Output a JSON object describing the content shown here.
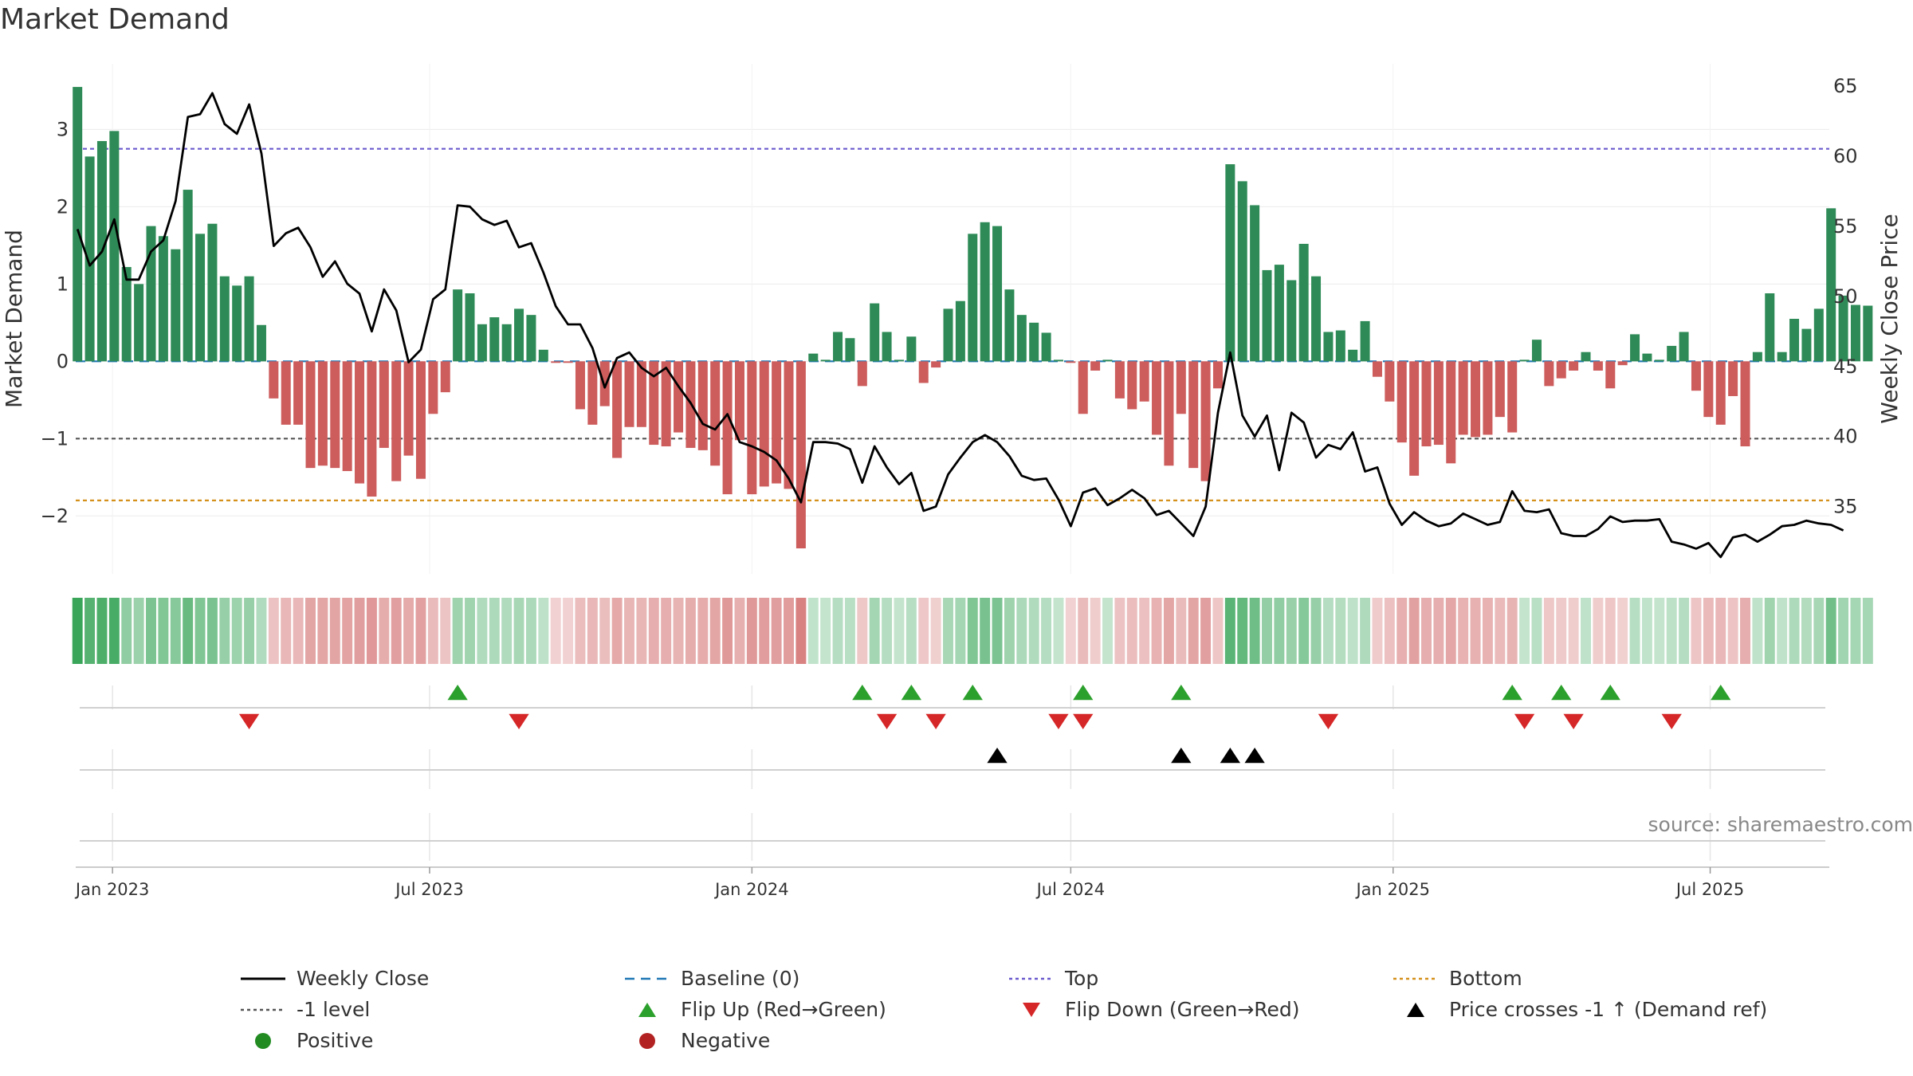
{
  "title": "Market Demand",
  "source": "source: sharemaestro.com",
  "colors": {
    "positive": "#2e8b57",
    "negative": "#cd5c5c",
    "close": "#000000",
    "top": "#6a5acd",
    "bottom": "#d4901a",
    "minus_one": "#555555",
    "baseline": "#1f77b4",
    "flip_up": "#2ca02c",
    "flip_down": "#d62728",
    "cross": "#000000",
    "positive_dot": "#228b22",
    "negative_dot": "#b22222"
  },
  "legend": [
    {
      "key": "close",
      "label": "Weekly Close",
      "symbol": "line-solid"
    },
    {
      "key": "baseline",
      "label": "Baseline (0)",
      "symbol": "line-dash"
    },
    {
      "key": "top",
      "label": "Top",
      "symbol": "line-dot"
    },
    {
      "key": "bottom",
      "label": "Bottom",
      "symbol": "line-dot"
    },
    {
      "key": "minus_one",
      "label": "-1 level",
      "symbol": "line-dot"
    },
    {
      "key": "flip_up",
      "label": "Flip Up (Red→Green)",
      "symbol": "tri-up"
    },
    {
      "key": "flip_down",
      "label": "Flip Down (Green→Red)",
      "symbol": "tri-down"
    },
    {
      "key": "cross",
      "label": "Price crosses -1 ↑ (Demand ref)",
      "symbol": "tri-up"
    },
    {
      "key": "positive_dot",
      "label": "Positive",
      "symbol": "dot"
    },
    {
      "key": "negative_dot",
      "label": "Negative",
      "symbol": "dot"
    }
  ],
  "chart_data": {
    "type": "bar",
    "title": "Market Demand",
    "ylabel": "Market Demand",
    "y2label": "Weekly Close Price",
    "ylim": [
      -2.75,
      3.85
    ],
    "y2lim": [
      30.2,
      66.6
    ],
    "yticks": [
      3,
      2,
      1,
      0,
      -1,
      -2
    ],
    "ytick_labels": [
      "3",
      "2",
      "1",
      "0",
      "−1",
      "−2"
    ],
    "y2ticks": [
      65,
      60,
      55,
      50,
      45,
      40,
      35
    ],
    "start_date": "2022-12-12",
    "xlim": [
      "2022-12-11",
      "2025-09-07"
    ],
    "xticks": [
      {
        "date": "2023-01-01",
        "label": "Jan 2023"
      },
      {
        "date": "2023-07-01",
        "label": "Jul 2023"
      },
      {
        "date": "2024-01-01",
        "label": "Jan 2024"
      },
      {
        "date": "2024-07-01",
        "label": "Jul 2024"
      },
      {
        "date": "2025-01-01",
        "label": "Jan 2025"
      },
      {
        "date": "2025-07-01",
        "label": "Jul 2025"
      }
    ],
    "levels": {
      "top": 2.75,
      "bottom": -1.8,
      "minus_one": -1.0,
      "baseline": 0
    },
    "demand": [
      3.55,
      2.65,
      2.85,
      2.98,
      1.22,
      1.0,
      1.75,
      1.62,
      1.45,
      2.22,
      1.65,
      1.78,
      1.1,
      0.98,
      1.1,
      0.47,
      -0.48,
      -0.82,
      -0.82,
      -1.38,
      -1.35,
      -1.38,
      -1.42,
      -1.58,
      -1.75,
      -1.12,
      -1.55,
      -1.22,
      -1.52,
      -0.68,
      -0.4,
      0.93,
      0.88,
      0.48,
      0.57,
      0.48,
      0.68,
      0.6,
      0.15,
      -0.02,
      -0.02,
      -0.62,
      -0.82,
      -0.58,
      -1.25,
      -0.85,
      -0.85,
      -1.08,
      -1.1,
      -0.92,
      -1.12,
      -1.15,
      -1.35,
      -1.72,
      -1.02,
      -1.72,
      -1.62,
      -1.58,
      -1.65,
      -2.42,
      0.1,
      0.02,
      0.38,
      0.3,
      -0.32,
      0.75,
      0.38,
      0.02,
      0.32,
      -0.28,
      -0.08,
      0.68,
      0.78,
      1.65,
      1.8,
      1.75,
      0.93,
      0.6,
      0.5,
      0.37,
      0.02,
      -0.02,
      -0.68,
      -0.12,
      0.02,
      -0.48,
      -0.62,
      -0.52,
      -0.95,
      -1.35,
      -0.68,
      -1.38,
      -1.55,
      -0.35,
      2.55,
      2.33,
      2.02,
      1.18,
      1.25,
      1.05,
      1.52,
      1.1,
      0.38,
      0.4,
      0.15,
      0.52,
      -0.2,
      -0.52,
      -1.05,
      -1.48,
      -1.1,
      -1.08,
      -1.32,
      -0.95,
      -0.98,
      -0.95,
      -0.72,
      -0.92,
      0.02,
      0.28,
      -0.32,
      -0.22,
      -0.12,
      0.12,
      -0.12,
      -0.35,
      -0.05,
      0.35,
      0.1,
      0.02,
      0.2,
      0.38,
      -0.38,
      -0.72,
      -0.82,
      -0.45,
      -1.1,
      0.12,
      0.88,
      0.12,
      0.55,
      0.42,
      0.68,
      1.98,
      0.85,
      0.73,
      0.72
    ],
    "close": [
      54.8,
      52.2,
      53.2,
      55.5,
      51.2,
      51.2,
      53.2,
      54.0,
      56.8,
      62.8,
      63.0,
      64.5,
      62.3,
      61.6,
      63.7,
      60.2,
      53.6,
      54.5,
      54.9,
      53.5,
      51.4,
      52.5,
      50.9,
      50.2,
      47.5,
      50.5,
      49.0,
      45.3,
      46.2,
      49.8,
      50.5,
      56.5,
      56.4,
      55.5,
      55.1,
      55.4,
      53.5,
      53.8,
      51.7,
      49.3,
      48.0,
      48.0,
      46.3,
      43.5,
      45.6,
      46.0,
      44.9,
      44.3,
      44.9,
      43.6,
      42.4,
      40.9,
      40.5,
      41.6,
      39.6,
      39.3,
      38.9,
      38.3,
      37.0,
      35.3,
      39.6,
      39.6,
      39.5,
      39.1,
      36.7,
      39.3,
      37.8,
      36.6,
      37.4,
      34.7,
      35.0,
      37.3,
      38.5,
      39.6,
      40.1,
      39.6,
      38.6,
      37.2,
      36.9,
      37.0,
      35.5,
      33.6,
      36.0,
      36.3,
      35.1,
      35.6,
      36.2,
      35.6,
      34.4,
      34.7,
      33.8,
      32.9,
      35.0,
      41.7,
      46.0,
      41.5,
      40.0,
      41.5,
      37.6,
      41.7,
      41.0,
      38.5,
      39.4,
      39.1,
      40.3,
      37.5,
      37.8,
      35.2,
      33.7,
      34.6,
      34.0,
      33.6,
      33.8,
      34.5,
      34.1,
      33.7,
      33.9,
      36.1,
      34.7,
      34.6,
      34.8,
      33.1,
      32.9,
      32.9,
      33.4,
      34.3,
      33.9,
      34.0,
      34.0,
      34.1,
      32.5,
      32.3,
      32.0,
      32.4,
      31.4,
      32.8,
      33.0,
      32.5,
      33.0,
      33.6,
      33.7,
      34.0,
      33.8,
      33.7,
      33.3
    ],
    "flip_up": [
      "2023-07-17",
      "2024-03-04",
      "2024-04-01",
      "2024-05-06",
      "2024-07-08",
      "2024-09-02",
      "2025-03-10",
      "2025-04-07",
      "2025-05-05",
      "2025-07-07"
    ],
    "flip_down": [
      "2023-03-20",
      "2023-08-21",
      "2024-03-18",
      "2024-04-15",
      "2024-06-24",
      "2024-07-08",
      "2024-11-25",
      "2025-03-17",
      "2025-04-14",
      "2025-06-09"
    ],
    "price_cross": [
      "2024-05-20",
      "2024-09-02",
      "2024-09-30",
      "2024-10-14"
    ]
  }
}
